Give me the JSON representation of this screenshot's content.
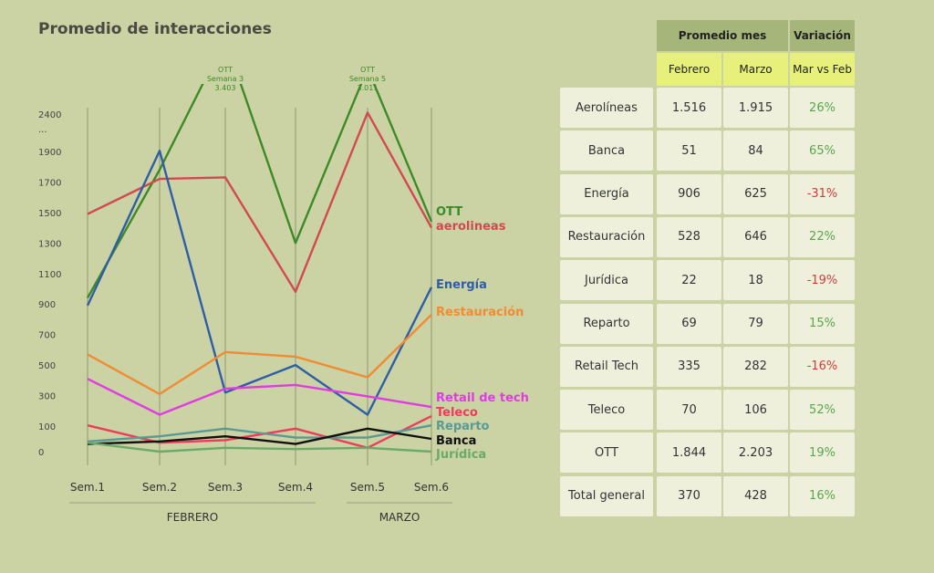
{
  "title": "Promedio de interacciones",
  "chart_data": {
    "type": "line",
    "title": "Promedio de interacciones",
    "categories": [
      "Sem.1",
      "Sem.2",
      "Sem.3",
      "Sem.4",
      "Sem.5",
      "Sem.6"
    ],
    "month_groups": [
      {
        "label": "FEBRERO",
        "weeks": [
          "Sem.1",
          "Sem.2",
          "Sem.3",
          "Sem.4"
        ]
      },
      {
        "label": "MARZO",
        "weeks": [
          "Sem.5",
          "Sem.6"
        ]
      }
    ],
    "y_ticks": [
      "0",
      "100",
      "300",
      "500",
      "700",
      "900",
      "1100",
      "1300",
      "1500",
      "1700",
      "1900",
      "...",
      "2400"
    ],
    "y_tick_values": [
      0,
      100,
      300,
      500,
      700,
      900,
      1100,
      1300,
      1500,
      1700,
      1900,
      2100,
      2400
    ],
    "series": [
      {
        "name": "OTT",
        "color": "#3e8a27",
        "values": [
          940,
          1780,
          3403,
          1300,
          3011,
          1440
        ]
      },
      {
        "name": "aerolineas",
        "color": "#d14a52",
        "values": [
          1490,
          1720,
          1730,
          980,
          2420,
          1400
        ]
      },
      {
        "name": "Energía",
        "color": "#2e5ea6",
        "values": [
          890,
          1910,
          320,
          500,
          175,
          1010
        ]
      },
      {
        "name": "Restauración",
        "color": "#f08c34",
        "values": [
          570,
          310,
          585,
          555,
          420,
          830
        ]
      },
      {
        "name": "Retail de tech",
        "color": "#e23be3",
        "values": [
          410,
          175,
          345,
          370,
          295,
          225
        ]
      },
      {
        "name": "Teleco",
        "color": "#ea3e5a",
        "values": [
          105,
          35,
          45,
          90,
          15,
          165
        ]
      },
      {
        "name": "Reparto",
        "color": "#5b9a92",
        "values": [
          40,
          60,
          90,
          55,
          55,
          105
        ]
      },
      {
        "name": "Banca",
        "color": "#111111",
        "values": [
          30,
          40,
          60,
          30,
          90,
          50
        ]
      },
      {
        "name": "Jurídica",
        "color": "#6aaa6a",
        "values": [
          35,
          0,
          15,
          10,
          15,
          0
        ]
      }
    ],
    "annotations": [
      {
        "series": "OTT",
        "week": "Sem.3",
        "lines": [
          "OTT",
          "Semana 3",
          "3.403"
        ]
      },
      {
        "series": "OTT",
        "week": "Sem.5",
        "lines": [
          "OTT",
          "Semana 5",
          "3.011"
        ]
      }
    ]
  },
  "table": {
    "header_group": "Promedio mes",
    "header_variation": "Variación",
    "sub_headers": [
      "Febrero",
      "Marzo",
      "Mar vs Feb"
    ],
    "rows": [
      {
        "label": "Aerolíneas",
        "feb": "1.516",
        "mar": "1.915",
        "var": "26%",
        "neg": false
      },
      {
        "label": "Banca",
        "feb": "51",
        "mar": "84",
        "var": "65%",
        "neg": false
      },
      {
        "label": "Energía",
        "feb": "906",
        "mar": "625",
        "var": "-31%",
        "neg": true
      },
      {
        "label": "Restauración",
        "feb": "528",
        "mar": "646",
        "var": "22%",
        "neg": false
      },
      {
        "label": "Jurídica",
        "feb": "22",
        "mar": "18",
        "var": "-19%",
        "neg": true
      },
      {
        "label": "Reparto",
        "feb": "69",
        "mar": "79",
        "var": "15%",
        "neg": false
      },
      {
        "label": "Retail Tech",
        "feb": "335",
        "mar": "282",
        "var": "-16%",
        "neg": true
      },
      {
        "label": "Teleco",
        "feb": "70",
        "mar": "106",
        "var": "52%",
        "neg": false
      },
      {
        "label": "OTT",
        "feb": "1.844",
        "mar": "2.203",
        "var": "19%",
        "neg": false
      },
      {
        "label": "Total general",
        "feb": "370",
        "mar": "428",
        "var": "16%",
        "neg": false
      }
    ],
    "colors": {
      "positive": "#5aa64e",
      "negative": "#d23b3b",
      "header": "#a6b579",
      "subheader": "#e6f07a"
    }
  }
}
